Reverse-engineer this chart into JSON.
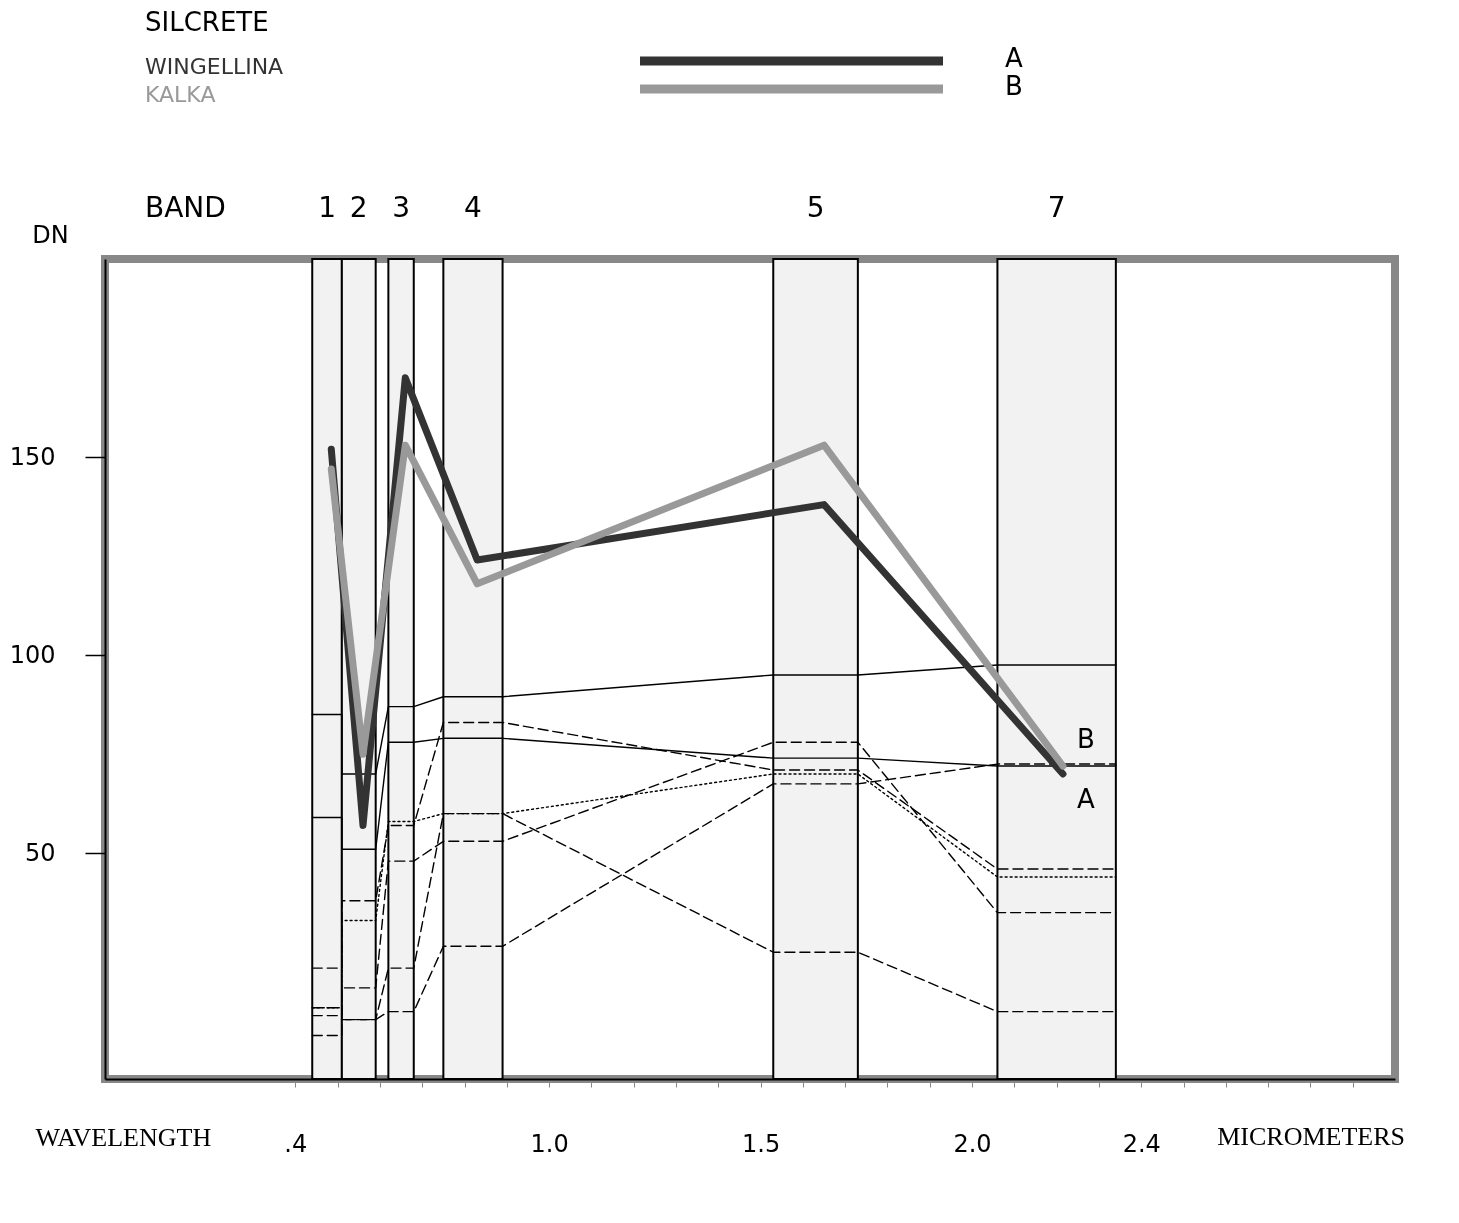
{
  "chart_data": {
    "type": "line",
    "title": "SILCRETE",
    "xlabel": "WAVELENGTH",
    "ylabel": "DN",
    "xlim": [
      -0.05,
      3.0
    ],
    "ylim": [
      -7,
      200
    ],
    "xticks": [
      {
        "value": 0.4,
        "label": ".4"
      },
      {
        "value": 0.5,
        "label": null
      },
      {
        "value": 0.6,
        "label": null
      },
      {
        "value": 0.7,
        "label": null
      },
      {
        "value": 0.8,
        "label": null
      },
      {
        "value": 0.9,
        "label": null
      },
      {
        "value": 1.0,
        "label": "1.0"
      },
      {
        "value": 1.1,
        "label": null
      },
      {
        "value": 1.2,
        "label": null
      },
      {
        "value": 1.3,
        "label": null
      },
      {
        "value": 1.4,
        "label": null
      },
      {
        "value": 1.5,
        "label": "1.5"
      },
      {
        "value": 1.6,
        "label": null
      },
      {
        "value": 1.7,
        "label": null
      },
      {
        "value": 1.8,
        "label": null
      },
      {
        "value": 1.9,
        "label": null
      },
      {
        "value": 2.0,
        "label": "2.0"
      },
      {
        "value": 2.1,
        "label": null
      },
      {
        "value": 2.2,
        "label": null
      },
      {
        "value": 2.3,
        "label": null
      },
      {
        "value": 2.4,
        "label": "2.4"
      },
      {
        "value": 2.5,
        "label": null
      },
      {
        "value": 2.6,
        "label": null
      },
      {
        "value": 2.7,
        "label": null
      },
      {
        "value": 2.8,
        "label": null
      },
      {
        "value": 2.9,
        "label": null
      }
    ],
    "yticks": [
      50,
      100,
      150
    ],
    "grid": false,
    "legend": "top",
    "marker": "none",
    "bands": [
      {
        "axis": "x",
        "from": 0.44,
        "to": 0.51,
        "label": "1",
        "color": "#f2f2f2"
      },
      {
        "axis": "x",
        "from": 0.51,
        "to": 0.59,
        "label": "2",
        "color": "#f2f2f2"
      },
      {
        "axis": "x",
        "from": 0.62,
        "to": 0.68,
        "label": "3",
        "color": "#f2f2f2"
      },
      {
        "axis": "x",
        "from": 0.75,
        "to": 0.89,
        "label": "4",
        "color": "#f2f2f2"
      },
      {
        "axis": "x",
        "from": 1.53,
        "to": 1.73,
        "label": "5",
        "color": "#f2f2f2"
      },
      {
        "axis": "x",
        "from": 2.06,
        "to": 2.34,
        "label": "7",
        "color": "#f2f2f2"
      }
    ],
    "series": [
      {
        "name": "WINGELLINA",
        "color": "#333333",
        "line_style": "solid",
        "x": [
          0.485,
          0.56,
          0.66,
          0.83,
          1.65,
          2.215
        ],
        "values": [
          152,
          57,
          170,
          124,
          138,
          70
        ]
      },
      {
        "name": "KALKA",
        "color": "#999999",
        "line_style": "solid",
        "x": [
          0.485,
          0.56,
          0.66,
          0.83,
          1.65,
          2.215
        ],
        "values": [
          147,
          75,
          153,
          118,
          153,
          72
        ]
      },
      {
        "color": "#000000",
        "line_style": "solid",
        "x": [
          0.44,
          0.51,
          0.51,
          0.59,
          0.62,
          0.68,
          0.75,
          0.89,
          1.53,
          1.73,
          2.06,
          2.34
        ],
        "values": [
          85,
          85,
          70,
          70,
          87,
          87,
          89.5,
          89.5,
          95,
          95,
          97.5,
          97.5
        ]
      },
      {
        "color": "#000000",
        "line_style": "solid",
        "x": [
          0.44,
          0.51,
          0.51,
          0.59,
          0.62,
          0.68,
          0.75,
          0.89,
          1.53,
          1.73,
          2.06,
          2.34
        ],
        "values": [
          59,
          59,
          51,
          51,
          78,
          78,
          79,
          79,
          74,
          74,
          72,
          72
        ]
      },
      {
        "color": "#000000",
        "line_style": "dashed",
        "x": [
          0.44,
          0.51,
          0.51,
          0.59,
          0.62,
          0.68,
          0.75,
          0.89,
          1.53,
          1.73,
          2.06,
          2.34
        ],
        "values": [
          21,
          21,
          38,
          38,
          57,
          57,
          83,
          83,
          71,
          71,
          46,
          46
        ]
      },
      {
        "color": "#000000",
        "line_style": "dotted",
        "x": [
          0.44,
          0.51,
          0.51,
          0.59,
          0.62,
          0.68,
          0.75,
          0.89,
          1.53,
          1.73,
          2.06,
          2.34
        ],
        "values": [
          11,
          11,
          33,
          33,
          58,
          58,
          60,
          60,
          70,
          70,
          44,
          44
        ]
      },
      {
        "color": "#000000",
        "line_style": "dashed",
        "x": [
          0.44,
          0.51,
          0.51,
          0.59,
          0.62,
          0.68,
          0.75,
          0.89,
          1.53,
          1.73,
          2.06,
          2.34
        ],
        "values": [
          9,
          9,
          16,
          16,
          48,
          48,
          53,
          53,
          78,
          78,
          35,
          35
        ]
      },
      {
        "color": "#000000",
        "line_style": "dashed",
        "x": [
          0.44,
          0.51,
          0.51,
          0.59,
          0.62,
          0.68,
          0.75,
          0.89,
          1.53,
          1.73,
          2.06,
          2.34
        ],
        "values": [
          4,
          4,
          8,
          8,
          21,
          21,
          60,
          60,
          25,
          25,
          10,
          10
        ]
      },
      {
        "color": "#000000",
        "line_style": "dashed",
        "x": [
          0.44,
          0.51,
          0.51,
          0.59,
          0.62,
          0.68,
          0.75,
          0.89,
          1.53,
          1.73,
          2.06,
          2.34
        ],
        "values": [
          11,
          11,
          8,
          8,
          10,
          10,
          26.5,
          26.5,
          67.5,
          67.5,
          72.5,
          72.5
        ]
      }
    ],
    "annotations": [
      "A",
      "B",
      "MICROMETERS",
      "BAND",
      {
        "text": "B",
        "x": 2.215,
        "y": 72
      },
      {
        "text": "A",
        "x": 2.215,
        "y": 70
      }
    ]
  }
}
